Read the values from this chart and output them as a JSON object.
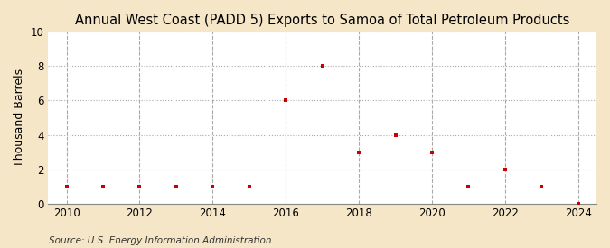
{
  "title": "Annual West Coast (PADD 5) Exports to Samoa of Total Petroleum Products",
  "ylabel": "Thousand Barrels",
  "source": "Source: U.S. Energy Information Administration",
  "years": [
    2010,
    2011,
    2012,
    2013,
    2014,
    2015,
    2016,
    2017,
    2018,
    2019,
    2020,
    2021,
    2022,
    2023,
    2024
  ],
  "values": [
    1,
    1,
    1,
    1,
    1,
    1,
    6,
    8,
    3,
    4,
    3,
    1,
    2,
    1,
    0
  ],
  "marker_color": "#cc0000",
  "marker": "s",
  "marker_size": 3.5,
  "figure_bg_color": "#f5e6c8",
  "plot_bg_color": "#ffffff",
  "grid_color": "#aaaaaa",
  "ylim": [
    0,
    10
  ],
  "yticks": [
    0,
    2,
    4,
    6,
    8,
    10
  ],
  "xlim": [
    2009.5,
    2024.5
  ],
  "xticks": [
    2010,
    2012,
    2014,
    2016,
    2018,
    2020,
    2022,
    2024
  ],
  "title_fontsize": 10.5,
  "axis_label_fontsize": 9,
  "tick_fontsize": 8.5,
  "source_fontsize": 7.5
}
